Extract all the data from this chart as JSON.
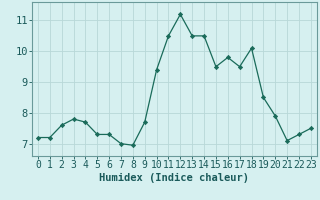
{
  "x": [
    0,
    1,
    2,
    3,
    4,
    5,
    6,
    7,
    8,
    9,
    10,
    11,
    12,
    13,
    14,
    15,
    16,
    17,
    18,
    19,
    20,
    21,
    22,
    23
  ],
  "y": [
    7.2,
    7.2,
    7.6,
    7.8,
    7.7,
    7.3,
    7.3,
    7.0,
    6.95,
    7.7,
    9.4,
    10.5,
    11.2,
    10.5,
    10.5,
    9.5,
    9.8,
    9.5,
    10.1,
    8.5,
    7.9,
    7.1,
    7.3,
    7.5
  ],
  "line_color": "#1a6b5a",
  "marker": "D",
  "marker_size": 2.2,
  "background_color": "#d6f0f0",
  "grid_color": "#b8d8d8",
  "grid_minor_color": "#c8e4e4",
  "xlabel": "Humidex (Indice chaleur)",
  "xlabel_fontsize": 7.5,
  "tick_fontsize": 7,
  "ylim": [
    6.6,
    11.6
  ],
  "xlim": [
    -0.5,
    23.5
  ],
  "yticks": [
    7,
    8,
    9,
    10,
    11
  ],
  "xticks": [
    0,
    1,
    2,
    3,
    4,
    5,
    6,
    7,
    8,
    9,
    10,
    11,
    12,
    13,
    14,
    15,
    16,
    17,
    18,
    19,
    20,
    21,
    22,
    23
  ]
}
